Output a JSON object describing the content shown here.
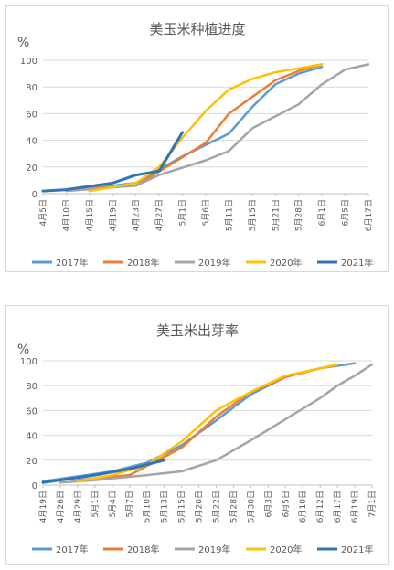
{
  "chart_data": [
    {
      "type": "line",
      "title": "美玉米种植进度",
      "ylabel": "%",
      "ylim": [
        0,
        100
      ],
      "yticks": [
        0,
        20,
        40,
        60,
        80,
        100
      ],
      "grid": true,
      "legend_position": "bottom",
      "categories": [
        "4月5日",
        "4月10日",
        "4月15日",
        "4月19日",
        "4月23日",
        "4月27日",
        "5月1日",
        "5月6日",
        "5月11日",
        "5月15日",
        "5月21日",
        "5月28日",
        "6月1日",
        "6月5日",
        "6月17日"
      ],
      "series": [
        {
          "name": "2017年",
          "color": "#5b9bd5",
          "points": [
            [
              0,
              2
            ],
            [
              2,
              4
            ],
            [
              4,
              8
            ],
            [
              6,
              28
            ],
            [
              8,
              45
            ],
            [
              9,
              65
            ],
            [
              10,
              82
            ],
            [
              11,
              90
            ],
            [
              12,
              95
            ]
          ]
        },
        {
          "name": "2018年",
          "color": "#ed7d31",
          "points": [
            [
              1,
              3
            ],
            [
              3,
              5
            ],
            [
              4,
              6
            ],
            [
              7,
              38
            ],
            [
              8,
              60
            ],
            [
              10,
              85
            ],
            [
              11,
              92
            ],
            [
              12,
              97
            ]
          ]
        },
        {
          "name": "2019年",
          "color": "#a5a5a5",
          "points": [
            [
              1,
              2
            ],
            [
              4,
              6
            ],
            [
              5,
              14
            ],
            [
              7,
              25
            ],
            [
              8,
              32
            ],
            [
              9,
              49
            ],
            [
              10,
              58
            ],
            [
              11,
              67
            ],
            [
              12,
              82
            ],
            [
              13,
              93
            ],
            [
              14,
              97
            ]
          ]
        },
        {
          "name": "2020年",
          "color": "#ffc000",
          "points": [
            [
              2,
              2
            ],
            [
              4,
              8
            ],
            [
              5,
              20
            ],
            [
              6,
              42
            ],
            [
              7,
              62
            ],
            [
              8,
              78
            ],
            [
              9,
              86
            ],
            [
              10,
              91
            ],
            [
              11,
              94
            ],
            [
              12,
              97
            ]
          ]
        },
        {
          "name": "2021年",
          "color": "#2e75b6",
          "points": [
            [
              0,
              2
            ],
            [
              1,
              3
            ],
            [
              3,
              8
            ],
            [
              4,
              14
            ],
            [
              5,
              17
            ],
            [
              6,
              46
            ]
          ]
        }
      ]
    },
    {
      "type": "line",
      "title": "美玉米出芽率",
      "ylabel": "%",
      "ylim": [
        0,
        100
      ],
      "yticks": [
        0,
        20,
        40,
        60,
        80,
        100
      ],
      "grid": true,
      "legend_position": "bottom",
      "categories": [
        "4月19日",
        "4月26日",
        "4月29日",
        "5月1日",
        "5月4日",
        "5月7日",
        "5月10日",
        "5月13日",
        "5月15日",
        "5月20日",
        "5月22日",
        "5月28日",
        "5月30日",
        "6月3日",
        "6月5日",
        "6月10日",
        "6月12日",
        "6月17日",
        "6月19日",
        "7月1日"
      ],
      "series": [
        {
          "name": "2017年",
          "color": "#5b9bd5",
          "points": [
            [
              0,
              3
            ],
            [
              2,
              7
            ],
            [
              4,
              11
            ],
            [
              6,
              18
            ],
            [
              8,
              32
            ],
            [
              10,
              52
            ],
            [
              12,
              73
            ],
            [
              14,
              87
            ],
            [
              16,
              94
            ],
            [
              18,
              98
            ]
          ]
        },
        {
          "name": "2018年",
          "color": "#ed7d31",
          "points": [
            [
              2,
              4
            ],
            [
              5,
              8
            ],
            [
              8,
              30
            ],
            [
              10,
              55
            ],
            [
              12,
              75
            ],
            [
              14,
              87
            ],
            [
              16,
              94
            ],
            [
              17,
              97
            ]
          ]
        },
        {
          "name": "2019年",
          "color": "#a5a5a5",
          "points": [
            [
              1,
              2
            ],
            [
              3,
              4
            ],
            [
              6,
              8
            ],
            [
              8,
              11
            ],
            [
              10,
              20
            ],
            [
              12,
              36
            ],
            [
              14,
              53
            ],
            [
              16,
              70
            ],
            [
              17,
              80
            ],
            [
              18,
              88
            ],
            [
              19,
              97
            ]
          ]
        },
        {
          "name": "2020年",
          "color": "#ffc000",
          "points": [
            [
              2,
              3
            ],
            [
              4,
              8
            ],
            [
              6,
              16
            ],
            [
              8,
              35
            ],
            [
              10,
              60
            ],
            [
              12,
              75
            ],
            [
              14,
              88
            ],
            [
              16,
              94
            ],
            [
              17,
              97
            ]
          ]
        },
        {
          "name": "2021年",
          "color": "#2e75b6",
          "points": [
            [
              0,
              2
            ],
            [
              3,
              8
            ],
            [
              5,
              13
            ],
            [
              7,
              20
            ]
          ]
        }
      ]
    }
  ]
}
